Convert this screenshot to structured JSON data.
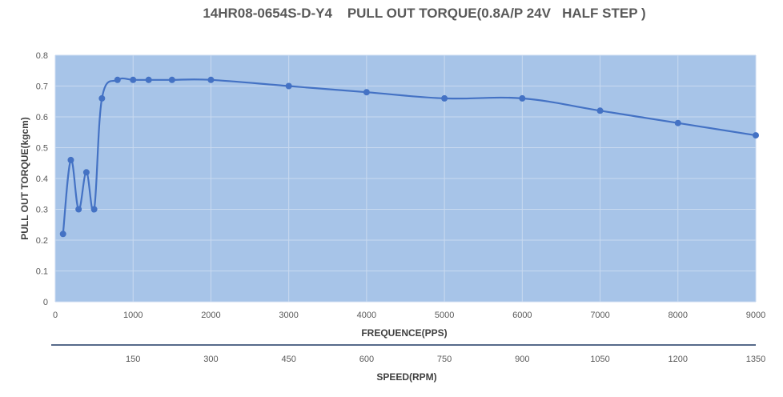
{
  "chart_data": {
    "type": "line",
    "title": "14HR08-0654S-D-Y4    PULL OUT TORQUE(0.8A/P 24V   HALF STEP )",
    "xlabel": "FREQUENCE(PPS)",
    "ylabel": "PULL OUT TORQUE(kgcm)",
    "secondary_xlabel": "SPEED(RPM)",
    "xlim": [
      0,
      9000
    ],
    "ylim": [
      0,
      0.8
    ],
    "x_ticks": [
      0,
      1000,
      2000,
      3000,
      4000,
      5000,
      6000,
      7000,
      8000,
      9000
    ],
    "y_ticks": [
      0,
      0.1,
      0.2,
      0.3,
      0.4,
      0.5,
      0.6,
      0.7,
      0.8
    ],
    "secondary_x_ticks": [
      {
        "freq": 1000,
        "label": "150"
      },
      {
        "freq": 2000,
        "label": "300"
      },
      {
        "freq": 3000,
        "label": "450"
      },
      {
        "freq": 4000,
        "label": "600"
      },
      {
        "freq": 5000,
        "label": "750"
      },
      {
        "freq": 6000,
        "label": "900"
      },
      {
        "freq": 7000,
        "label": "1050"
      },
      {
        "freq": 8000,
        "label": "1200"
      },
      {
        "freq": 9000,
        "label": "1350"
      }
    ],
    "grid": true,
    "series": [
      {
        "color": "#4472C4",
        "x": [
          100,
          200,
          300,
          400,
          500,
          600,
          800,
          1000,
          1200,
          1500,
          2000,
          3000,
          4000,
          5000,
          6000,
          7000,
          8000,
          9000
        ],
        "y": [
          0.22,
          0.46,
          0.3,
          0.42,
          0.3,
          0.66,
          0.72,
          0.72,
          0.72,
          0.72,
          0.72,
          0.7,
          0.68,
          0.66,
          0.66,
          0.62,
          0.58,
          0.54
        ]
      }
    ],
    "plot_background": "#A7C4E8",
    "grid_color": "#C9DAF0"
  }
}
